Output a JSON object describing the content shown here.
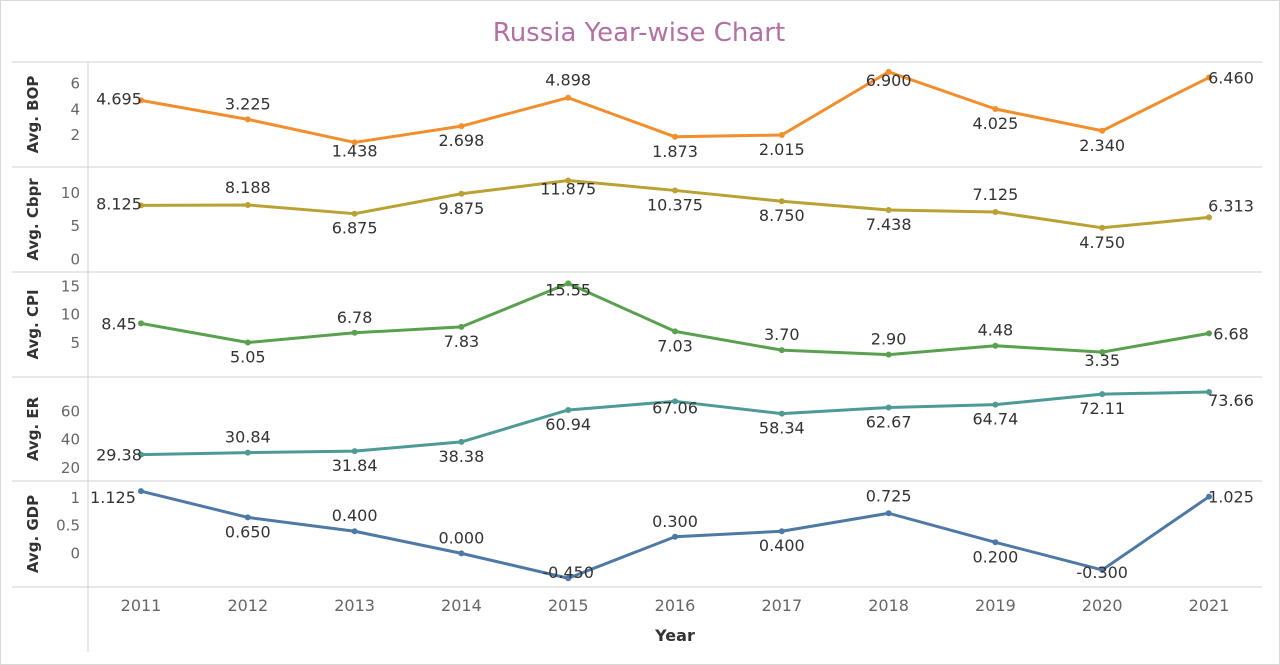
{
  "chart_data": {
    "type": "line",
    "title": "Russia Year-wise Chart",
    "xlabel": "Year",
    "categories": [
      "2011",
      "2012",
      "2013",
      "2014",
      "2015",
      "2016",
      "2017",
      "2018",
      "2019",
      "2020",
      "2021"
    ],
    "series": [
      {
        "name": "Avg. BOP",
        "color": "#f28e2b",
        "ylim": [
          0,
          7.2
        ],
        "ticks": [
          "2",
          "4",
          "6"
        ],
        "values": [
          4.695,
          3.225,
          1.438,
          2.698,
          4.898,
          1.873,
          2.015,
          6.9,
          4.025,
          2.34,
          6.46
        ],
        "labels": [
          "4.695",
          "3.225",
          "1.438",
          "2.698",
          "4.898",
          "1.873",
          "2.015",
          "6.900",
          "4.025",
          "2.340",
          "6.460"
        ]
      },
      {
        "name": "Avg. Cbpr",
        "color": "#b9a233",
        "ylim": [
          -1,
          13
        ],
        "ticks": [
          "0",
          "5",
          "10"
        ],
        "values": [
          8.125,
          8.188,
          6.875,
          9.875,
          11.875,
          10.375,
          8.75,
          7.438,
          7.125,
          4.75,
          6.313
        ],
        "labels": [
          "8.125",
          "8.188",
          "6.875",
          "9.875",
          "11.875",
          "10.375",
          "8.750",
          "7.438",
          "7.125",
          "4.750",
          "6.313"
        ]
      },
      {
        "name": "Avg. CPI",
        "color": "#59a14f",
        "ylim": [
          0,
          16.5
        ],
        "ticks": [
          "5",
          "10",
          "15"
        ],
        "values": [
          8.45,
          5.05,
          6.78,
          7.83,
          15.55,
          7.03,
          3.7,
          2.9,
          4.48,
          3.35,
          6.68
        ],
        "labels": [
          "8.45",
          "5.05",
          "6.78",
          "7.83",
          "15.55",
          "7.03",
          "3.70",
          "2.90",
          "4.48",
          "3.35",
          "6.68"
        ]
      },
      {
        "name": "Avg. ER",
        "color": "#4e9a96",
        "ylim": [
          15,
          80
        ],
        "ticks": [
          "20",
          "40",
          "60"
        ],
        "values": [
          29.38,
          30.84,
          31.84,
          38.38,
          60.94,
          67.06,
          58.34,
          62.67,
          64.74,
          72.11,
          73.66
        ],
        "labels": [
          "29.38",
          "30.84",
          "31.84",
          "38.38",
          "60.94",
          "67.06",
          "58.34",
          "62.67",
          "64.74",
          "72.11",
          "73.66"
        ]
      },
      {
        "name": "Avg. GDP",
        "color": "#4e79a7",
        "ylim": [
          -0.5,
          1.2
        ],
        "ticks": [
          "0",
          "0.5",
          "1"
        ],
        "values": [
          1.125,
          0.65,
          0.4,
          0.0,
          -0.45,
          0.3,
          0.4,
          0.725,
          0.2,
          -0.3,
          1.025
        ],
        "labels": [
          "1.125",
          "0.650",
          "0.400",
          "0.000",
          "-0.450",
          "0.300",
          "0.400",
          "0.725",
          "0.200",
          "-0.300",
          "1.025"
        ]
      }
    ],
    "grid": false,
    "legend": "none"
  }
}
